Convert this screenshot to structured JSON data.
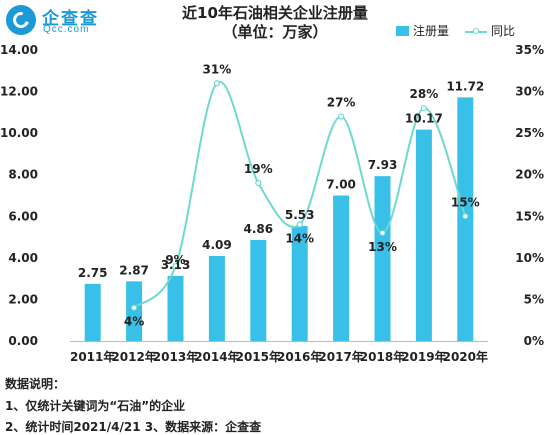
{
  "brand": {
    "name": "企查查",
    "domain": "Qcc.com"
  },
  "chart_data": {
    "type": "bar",
    "title": "近10年石油相关企业注册量",
    "subtitle": "（单位：万家）",
    "categories": [
      "2011年",
      "2012年",
      "2013年",
      "2014年",
      "2015年",
      "2016年",
      "2017年",
      "2018年",
      "2019年",
      "2020年"
    ],
    "series": [
      {
        "name": "注册量",
        "type": "bar",
        "axis": "left",
        "color": "#38c0e8",
        "values": [
          2.75,
          2.87,
          3.13,
          4.09,
          4.86,
          5.53,
          7.0,
          7.93,
          10.17,
          11.72
        ],
        "labels": [
          "2.75",
          "2.87",
          "3.13",
          "4.09",
          "4.86",
          "5.53",
          "7.00",
          "7.93",
          "10.17",
          "11.72"
        ]
      },
      {
        "name": "同比",
        "type": "line",
        "axis": "right",
        "color": "#6fd8d0",
        "values": [
          null,
          4,
          9,
          31,
          19,
          14,
          27,
          13,
          28,
          15
        ],
        "labels": [
          "",
          "4%",
          "9%",
          "31%",
          "19%",
          "14%",
          "27%",
          "13%",
          "28%",
          "15%"
        ]
      }
    ],
    "y_left": {
      "range": [
        0,
        14
      ],
      "ticks": [
        "0.00",
        "2.00",
        "4.00",
        "6.00",
        "8.00",
        "10.00",
        "12.00",
        "14.00"
      ]
    },
    "y_right": {
      "range": [
        0,
        35
      ],
      "ticks": [
        "0%",
        "5%",
        "10%",
        "15%",
        "20%",
        "25%",
        "30%",
        "35%"
      ]
    },
    "grid": false,
    "legend": "top-right"
  },
  "notes": {
    "heading": "数据说明：",
    "line1": "1、仅统计关键词为“石油”的企业",
    "line2": "2、统计时间2021/4/21   3、数据来源：企查查"
  }
}
